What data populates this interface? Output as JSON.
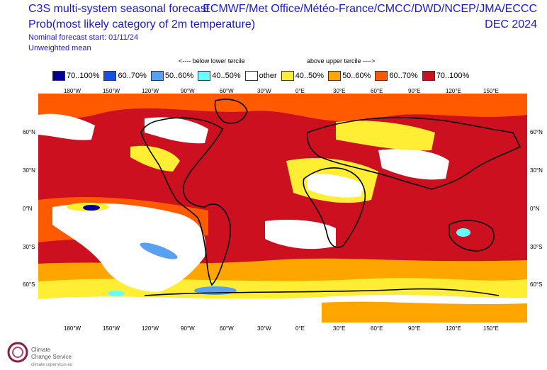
{
  "header": {
    "title_line1": "C3S multi-system seasonal forecast",
    "title_line2": "Prob(most likely category of 2m temperature)",
    "nominal_start": "Nominal forecast start: 01/11/24",
    "weighting": "Unweighted mean",
    "centres": "ECMWF/Met Office/Météo-France/CMCC/DWD/NCEP/JMA/ECCC",
    "period": "DEC 2024"
  },
  "legend": {
    "below_hint": "<---- below lower tercile",
    "above_hint": "above upper tercile ---->",
    "items": [
      {
        "label": "70..100%",
        "color": "#000099"
      },
      {
        "label": "60..70%",
        "color": "#1a4fe6"
      },
      {
        "label": "50..60%",
        "color": "#5aa0f0"
      },
      {
        "label": "40..50%",
        "color": "#66ffff"
      },
      {
        "label": "other",
        "color": "#ffffff"
      },
      {
        "label": "40..50%",
        "color": "#ffee33"
      },
      {
        "label": "50..60%",
        "color": "#ffa500"
      },
      {
        "label": "60..70%",
        "color": "#ff5a00"
      },
      {
        "label": "70..100%",
        "color": "#cc1020"
      }
    ]
  },
  "axes": {
    "lon_labels": [
      "180°W",
      "150°W",
      "120°W",
      "90°W",
      "60°W",
      "30°W",
      "0°E",
      "30°E",
      "60°E",
      "90°E",
      "120°E",
      "150°E"
    ],
    "lat_labels": [
      "60°N",
      "30°N",
      "0°N",
      "30°S",
      "60°S"
    ]
  },
  "branding": {
    "name_line1": "Climate",
    "name_line2": "Change Service",
    "url": "climate.copernicus.eu"
  }
}
